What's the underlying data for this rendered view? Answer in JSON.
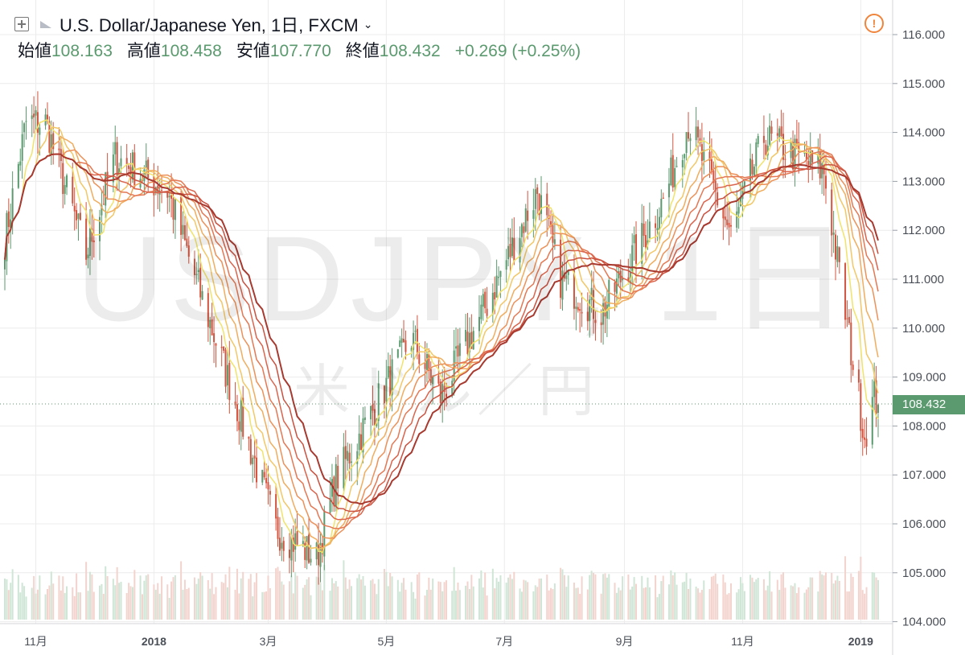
{
  "header": {
    "title": "U.S. Dollar/Japanese Yen, 1日, FXCM",
    "open_label": "始値",
    "open_value": "108.163",
    "high_label": "高値",
    "high_value": "108.458",
    "low_label": "安値",
    "low_value": "107.770",
    "close_label": "終値",
    "close_value": "108.432",
    "change": "+0.269 (+0.25%)"
  },
  "watermark": {
    "symbol": "USDJPY, 1日",
    "name": "米ドル／円"
  },
  "last_price_tag": "108.432",
  "colors": {
    "up": "#5a9a6e",
    "down": "#d2543f",
    "volume_up": "#cfe5d6",
    "volume_down": "#f3d3cd",
    "grid": "#ececec"
  },
  "chart_data": {
    "type": "candlestick",
    "symbol": "USDJPY",
    "interval": "1日",
    "ylim": [
      104.0,
      116.6
    ],
    "y_ticks": [
      "116.000",
      "115.000",
      "114.000",
      "113.000",
      "112.000",
      "111.000",
      "110.000",
      "109.000",
      "108.000",
      "107.000",
      "106.000",
      "105.000",
      "104.000"
    ],
    "x_ticks": [
      "11月",
      "2018",
      "3月",
      "5月",
      "7月",
      "9月",
      "11月",
      "2019"
    ],
    "price_path": [
      [
        "2017-10-16",
        111.8
      ],
      [
        "2017-10-27",
        114.2
      ],
      [
        "2017-11-06",
        114.2
      ],
      [
        "2017-11-27",
        111.5
      ],
      [
        "2017-12-12",
        113.5
      ],
      [
        "2018-01-08",
        112.8
      ],
      [
        "2018-02-12",
        108.5
      ],
      [
        "2018-03-05",
        105.9
      ],
      [
        "2018-03-26",
        105.3
      ],
      [
        "2018-04-05",
        106.9
      ],
      [
        "2018-05-14",
        109.8
      ],
      [
        "2018-05-29",
        108.6
      ],
      [
        "2018-06-22",
        110.5
      ],
      [
        "2018-07-18",
        112.8
      ],
      [
        "2018-07-30",
        111.0
      ],
      [
        "2018-08-20",
        110.3
      ],
      [
        "2018-09-21",
        112.6
      ],
      [
        "2018-10-04",
        114.2
      ],
      [
        "2018-10-26",
        111.9
      ],
      [
        "2018-11-12",
        113.9
      ],
      [
        "2018-12-13",
        113.2
      ],
      [
        "2018-12-24",
        110.3
      ],
      [
        "2019-01-03",
        107.8
      ],
      [
        "2019-01-08",
        108.6
      ],
      [
        "2019-01-10",
        108.432
      ]
    ],
    "moving_average_ribbon": {
      "count": 8,
      "colors": [
        "#f1e36a",
        "#f2c766",
        "#f0ad5e",
        "#ec9158",
        "#e47853",
        "#db644c",
        "#c9513f",
        "#a8392f"
      ]
    },
    "last_price": 108.432
  }
}
